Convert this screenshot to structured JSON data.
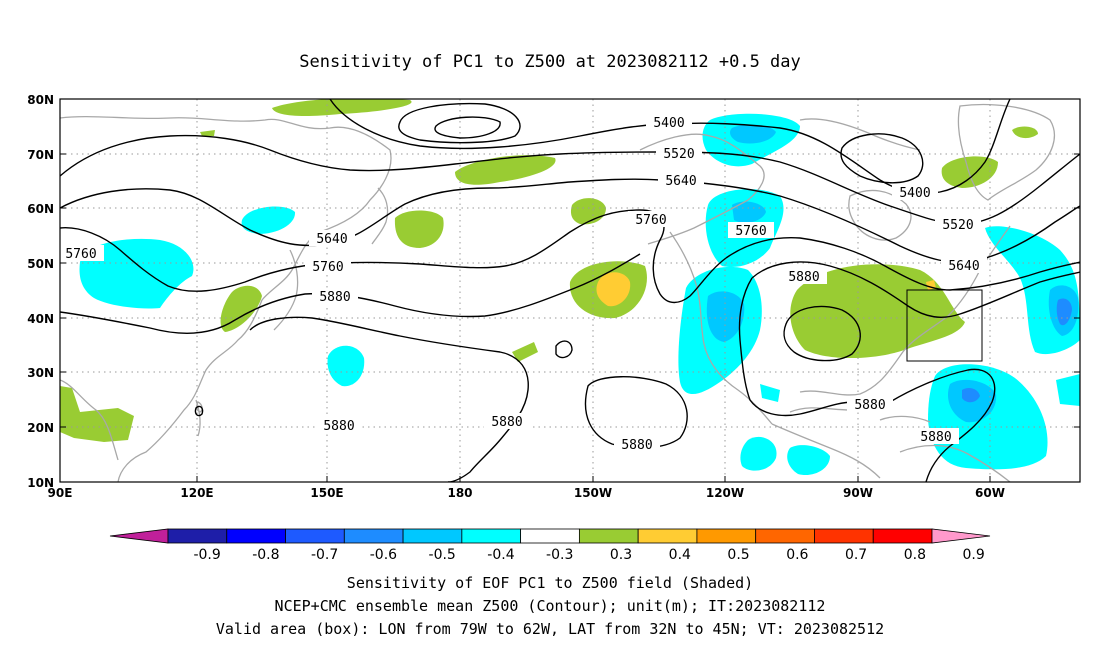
{
  "title": "Sensitivity of PC1 to Z500 at 2023082112 +0.5 day",
  "lat_ticks": [
    "80N",
    "70N",
    "60N",
    "50N",
    "40N",
    "30N",
    "20N",
    "10N"
  ],
  "lon_ticks": [
    "90E",
    "120E",
    "150E",
    "180",
    "150W",
    "120W",
    "90W",
    "60W"
  ],
  "contour_labels": [
    "5400",
    "5520",
    "5640",
    "5760",
    "5400",
    "5520",
    "5640",
    "5760",
    "5640",
    "5760",
    "5880",
    "5760",
    "5880",
    "5880",
    "5880",
    "5880",
    "5880"
  ],
  "colorbar": {
    "labels": [
      "-0.9",
      "-0.8",
      "-0.7",
      "-0.6",
      "-0.5",
      "-0.4",
      "-0.3",
      "0.3",
      "0.4",
      "0.5",
      "0.6",
      "0.7",
      "0.8",
      "0.9"
    ],
    "colors": [
      "#c0209a",
      "#1e1ea8",
      "#0000ff",
      "#1e5aff",
      "#1e8cff",
      "#00c8ff",
      "#00ffff",
      "#ffffff",
      "#99cc33",
      "#ffcc33",
      "#ff9900",
      "#ff6600",
      "#ff3300",
      "#ff0000",
      "#ff99cc"
    ]
  },
  "captions": [
    "Sensitivity of EOF PC1 to Z500 field (Shaded)",
    "NCEP+CMC ensemble mean Z500 (Contour); unit(m); IT:2023082112",
    "Valid area (box): LON from 79W to 62W, LAT from 32N to 45N; VT: 2023082512"
  ],
  "valid_box": {
    "lon_min": -79,
    "lon_max": -62,
    "lat_min": 32,
    "lat_max": 45
  }
}
